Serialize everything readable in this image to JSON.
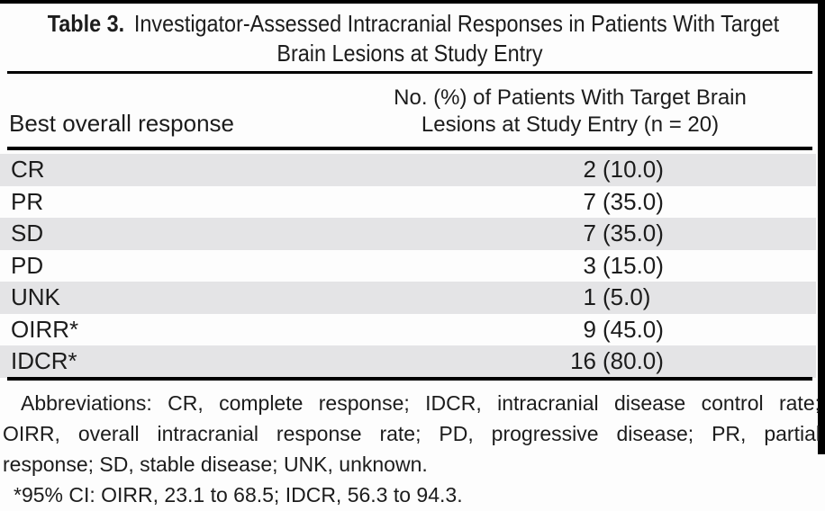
{
  "title": {
    "bold": "Table 3.",
    "line1_rest": "Investigator-Assessed Intracranial Responses in Patients With Target",
    "line2": "Brain Lesions at Study Entry"
  },
  "columns": {
    "left": "Best overall response",
    "right_line1": "No. (%) of Patients With Target Brain",
    "right_line2": "Lesions at Study Entry (n = 20)"
  },
  "rows": [
    {
      "label": "CR",
      "count": "2",
      "pct": "(10.0)"
    },
    {
      "label": "PR",
      "count": "7",
      "pct": "(35.0)"
    },
    {
      "label": "SD",
      "count": "7",
      "pct": "(35.0)"
    },
    {
      "label": "PD",
      "count": "3",
      "pct": "(15.0)"
    },
    {
      "label": "UNK",
      "count": "1",
      "pct": "(5.0)"
    },
    {
      "label": "OIRR*",
      "count": "9",
      "pct": "(45.0)"
    },
    {
      "label": "IDCR*",
      "count": "16",
      "pct": "(80.0)"
    }
  ],
  "footnotes": {
    "abbrev_line1": "Abbreviations: CR, complete response; IDCR, intracranial disease control rate;",
    "abbrev_line2": "OIRR, overall intracranial response rate; PD, progressive disease; PR, partial",
    "abbrev_line3": "response; SD, stable disease; UNK, unknown.",
    "ci_line": "*95% CI: OIRR, 23.1 to 68.5; IDCR, 56.3 to 94.3."
  },
  "colors": {
    "background": "#fdfdfd",
    "text": "#1c1c1c",
    "rule": "#000000",
    "row_shade": "#e4e4e6"
  }
}
